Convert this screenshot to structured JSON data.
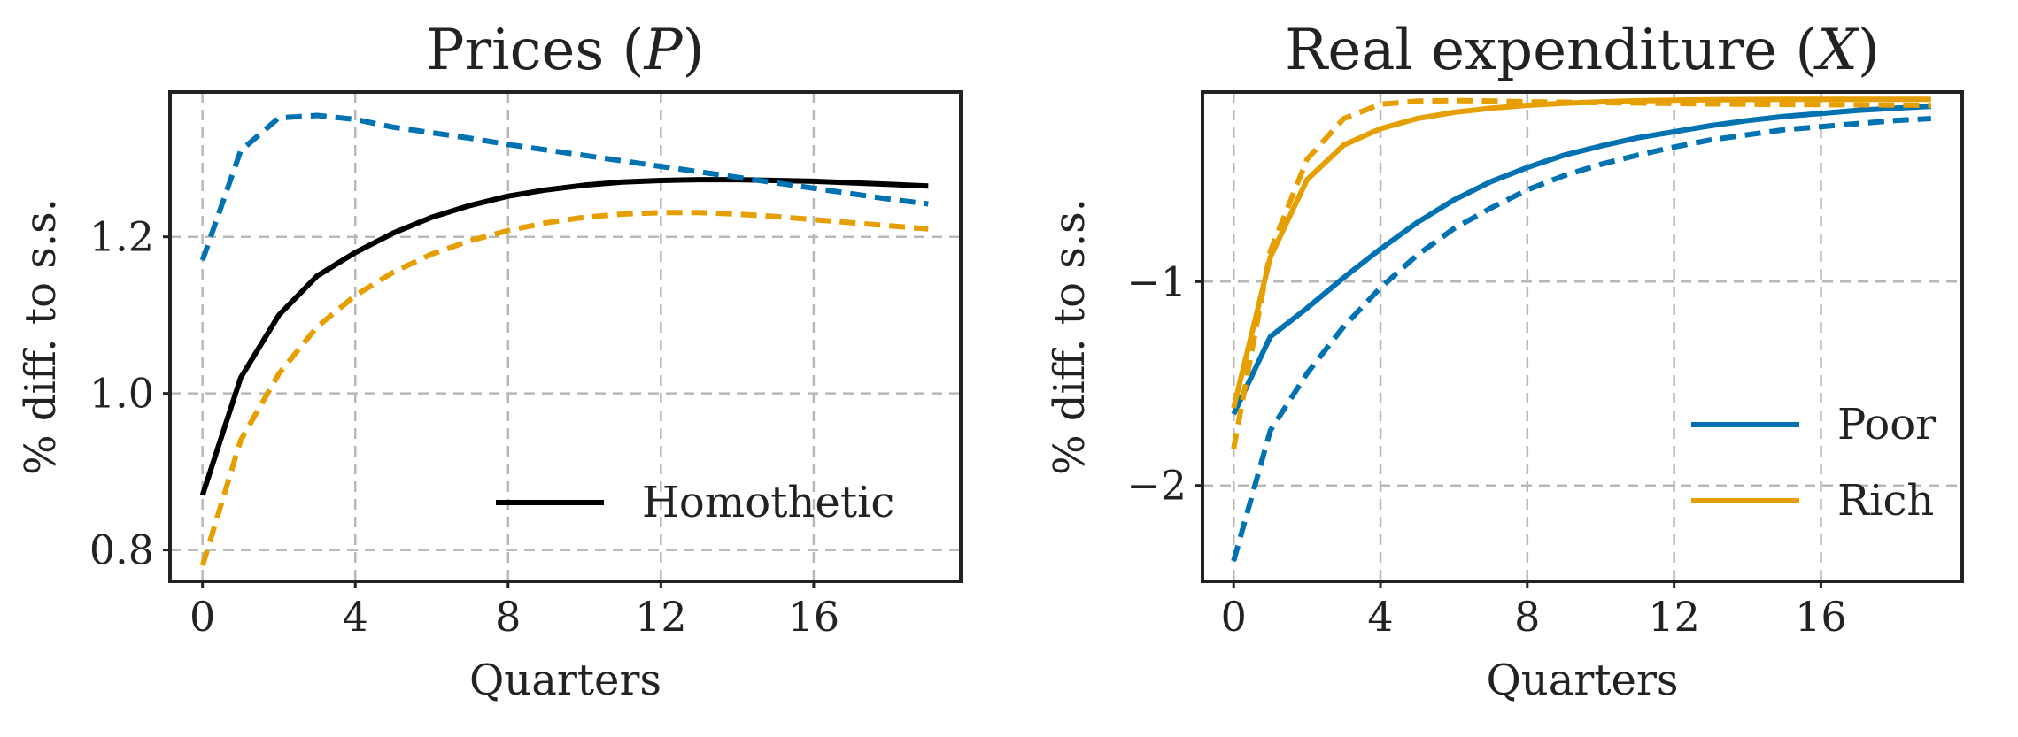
{
  "colors": {
    "poor": "#0072B2",
    "rich": "#E69F00",
    "homothetic": "#000000"
  },
  "chart_data": [
    {
      "type": "line",
      "title": "Prices (P)",
      "title_parts": [
        "Prices (",
        "P",
        ")"
      ],
      "xlabel": "Quarters",
      "ylabel": "% diff. to s.s.",
      "xlim": [
        -0.85,
        19.85
      ],
      "ylim": [
        0.76,
        1.385
      ],
      "xticks": [
        0,
        4,
        8,
        12,
        16
      ],
      "xtick_labels": [
        "0",
        "4",
        "8",
        "12",
        "16"
      ],
      "yticks": [
        0.8,
        1.0,
        1.2
      ],
      "ytick_labels": [
        "0.8",
        "1.0",
        "1.2"
      ],
      "grid": true,
      "legend": {
        "position": "lower-right",
        "entries": [
          {
            "label": "Homothetic",
            "color": "#000000",
            "dash": "solid"
          }
        ]
      },
      "x": [
        0,
        1,
        2,
        3,
        4,
        5,
        6,
        7,
        8,
        9,
        10,
        11,
        12,
        13,
        14,
        15,
        16,
        17,
        18,
        19
      ],
      "series": [
        {
          "name": "Homothetic",
          "color": "#000000",
          "dash": "solid",
          "values": [
            0.87,
            1.02,
            1.1,
            1.15,
            1.18,
            1.205,
            1.225,
            1.24,
            1.252,
            1.26,
            1.266,
            1.27,
            1.272,
            1.273,
            1.273,
            1.272,
            1.271,
            1.269,
            1.267,
            1.265
          ]
        },
        {
          "color": "#0072B2",
          "dash": "dashed",
          "values": [
            1.17,
            1.31,
            1.352,
            1.355,
            1.35,
            1.34,
            1.333,
            1.326,
            1.318,
            1.311,
            1.304,
            1.297,
            1.29,
            1.283,
            1.276,
            1.269,
            1.262,
            1.255,
            1.248,
            1.242
          ]
        },
        {
          "color": "#E69F00",
          "dash": "dashed",
          "values": [
            0.78,
            0.94,
            1.025,
            1.085,
            1.125,
            1.155,
            1.178,
            1.195,
            1.208,
            1.218,
            1.225,
            1.229,
            1.231,
            1.231,
            1.229,
            1.226,
            1.222,
            1.218,
            1.214,
            1.21
          ]
        }
      ]
    },
    {
      "type": "line",
      "title": "Real expenditure (X)",
      "title_parts": [
        "Real expenditure (",
        "X",
        ")"
      ],
      "xlabel": "Quarters",
      "ylabel": "% diff. to s.s.",
      "xlim": [
        -0.85,
        19.85
      ],
      "ylim": [
        -2.47,
        -0.07
      ],
      "xticks": [
        0,
        4,
        8,
        12,
        16
      ],
      "xtick_labels": [
        "0",
        "4",
        "8",
        "12",
        "16"
      ],
      "yticks": [
        -2,
        -1
      ],
      "ytick_labels": [
        "−2",
        "−1"
      ],
      "grid": true,
      "legend": {
        "position": "lower-right",
        "entries": [
          {
            "label": "Poor",
            "color": "#0072B2",
            "dash": "solid"
          },
          {
            "label": "Rich",
            "color": "#E69F00",
            "dash": "solid"
          }
        ]
      },
      "x": [
        0,
        1,
        2,
        3,
        4,
        5,
        6,
        7,
        8,
        9,
        10,
        11,
        12,
        13,
        14,
        15,
        16,
        17,
        18,
        19
      ],
      "series": [
        {
          "name": "Poor",
          "color": "#0072B2",
          "dash": "solid",
          "values": [
            -1.65,
            -1.27,
            -1.13,
            -0.98,
            -0.84,
            -0.71,
            -0.6,
            -0.51,
            -0.44,
            -0.38,
            -0.335,
            -0.295,
            -0.265,
            -0.235,
            -0.21,
            -0.19,
            -0.175,
            -0.16,
            -0.15,
            -0.14
          ]
        },
        {
          "color": "#0072B2",
          "dash": "dashed",
          "values": [
            -2.37,
            -1.73,
            -1.45,
            -1.22,
            -1.03,
            -0.87,
            -0.74,
            -0.64,
            -0.55,
            -0.48,
            -0.425,
            -0.38,
            -0.34,
            -0.305,
            -0.28,
            -0.255,
            -0.24,
            -0.225,
            -0.21,
            -0.2
          ]
        },
        {
          "name": "Rich",
          "color": "#E69F00",
          "dash": "solid",
          "values": [
            -1.62,
            -0.88,
            -0.5,
            -0.33,
            -0.25,
            -0.2,
            -0.17,
            -0.15,
            -0.135,
            -0.125,
            -0.118,
            -0.113,
            -0.11,
            -0.108,
            -0.107,
            -0.106,
            -0.106,
            -0.106,
            -0.106,
            -0.106
          ]
        },
        {
          "color": "#E69F00",
          "dash": "dashed",
          "values": [
            -1.82,
            -0.85,
            -0.4,
            -0.2,
            -0.13,
            -0.115,
            -0.112,
            -0.114,
            -0.118,
            -0.12,
            -0.122,
            -0.124,
            -0.126,
            -0.128,
            -0.13,
            -0.131,
            -0.132,
            -0.133,
            -0.134,
            -0.135
          ]
        }
      ]
    }
  ]
}
